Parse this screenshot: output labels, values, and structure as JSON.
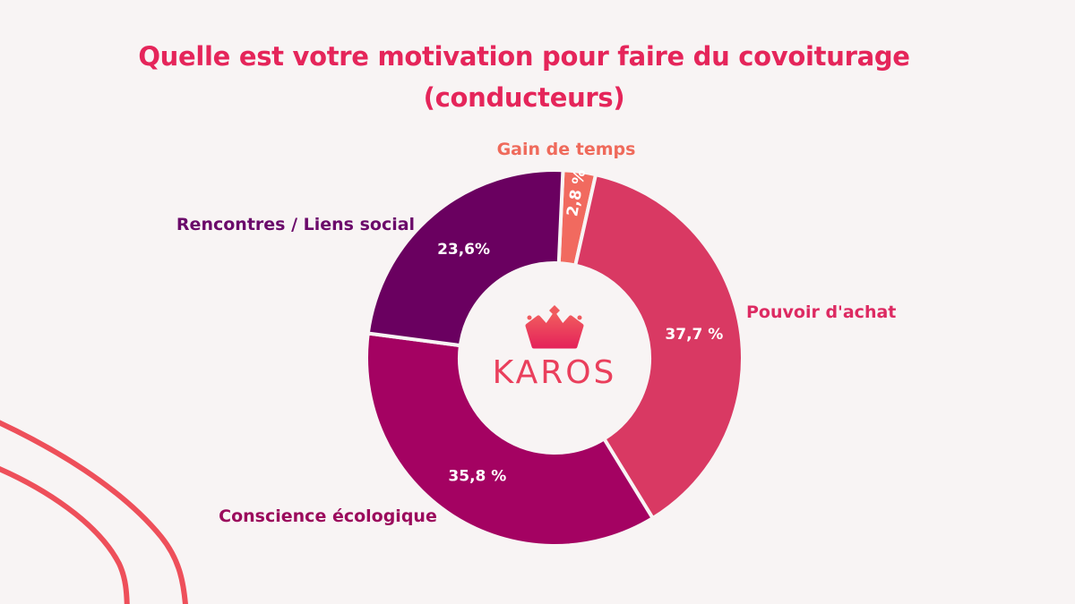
{
  "chart_data": {
    "type": "pie",
    "donut": true,
    "title_line1": "Quelle est votre motivation pour faire du covoiturage",
    "title_line2": "(conducteurs)",
    "slices": [
      {
        "label": "Gain de temps",
        "value": 2.8,
        "value_label": "2,8 %",
        "color": "#f16a5f",
        "label_color": "#ef6a5b"
      },
      {
        "label": "Pouvoir d'achat",
        "value": 37.7,
        "value_label": "37,7 %",
        "color": "#d93963",
        "label_color": "#dd2a62"
      },
      {
        "label": "Conscience écologique",
        "value": 35.8,
        "value_label": "35,8 %",
        "color": "#a40262",
        "label_color": "#9b0a5c"
      },
      {
        "label": "Rencontres / Liens social",
        "value": 23.6,
        "value_label": "23,6%",
        "color": "#6a0060",
        "label_color": "#6b0a6a"
      }
    ]
  },
  "logo": {
    "text": "KAROS",
    "icon": "crown-icon",
    "colors": [
      "#f05a5e",
      "#e5255a"
    ]
  },
  "decoration": {
    "line_color": "#ee4f5a"
  }
}
